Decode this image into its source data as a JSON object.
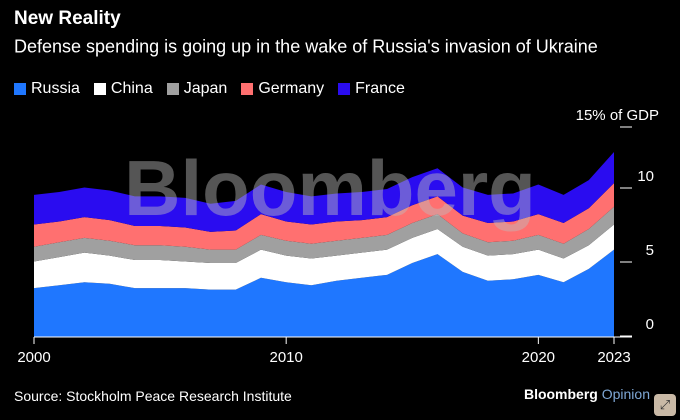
{
  "header": {
    "title": "New Reality",
    "subtitle": "Defense spending is going up in the wake of Russia's invasion of Ukraine"
  },
  "footer": {
    "source": "Source: Stockholm Peace Research Institute",
    "brand_main": "Bloomberg",
    "brand_sub": "Opinion"
  },
  "watermark": "Bloomberg",
  "colors": {
    "Russia": "#1f77ff",
    "China": "#ffffff",
    "Japan": "#a0a0a0",
    "Germany": "#ff7070",
    "France": "#2a0cf0"
  },
  "chart_data": {
    "type": "area",
    "stacked": true,
    "x": [
      2000,
      2001,
      2002,
      2003,
      2004,
      2005,
      2006,
      2007,
      2008,
      2009,
      2010,
      2011,
      2012,
      2013,
      2014,
      2015,
      2016,
      2017,
      2018,
      2019,
      2020,
      2021,
      2022,
      2023
    ],
    "series": [
      {
        "name": "Russia",
        "values": [
          3.3,
          3.5,
          3.7,
          3.6,
          3.3,
          3.3,
          3.3,
          3.2,
          3.2,
          4.0,
          3.7,
          3.5,
          3.8,
          4.0,
          4.2,
          5.0,
          5.6,
          4.4,
          3.8,
          3.9,
          4.2,
          3.7,
          4.6,
          5.9
        ]
      },
      {
        "name": "China",
        "values": [
          1.8,
          1.9,
          2.0,
          1.9,
          1.9,
          1.9,
          1.8,
          1.8,
          1.8,
          1.9,
          1.8,
          1.8,
          1.7,
          1.7,
          1.7,
          1.7,
          1.7,
          1.7,
          1.7,
          1.7,
          1.7,
          1.6,
          1.6,
          1.7
        ]
      },
      {
        "name": "Japan",
        "values": [
          1.0,
          1.0,
          1.0,
          1.0,
          1.0,
          1.0,
          1.0,
          0.9,
          0.9,
          1.0,
          1.0,
          1.0,
          1.0,
          1.0,
          1.0,
          1.0,
          1.0,
          0.9,
          0.9,
          0.9,
          1.0,
          1.0,
          1.1,
          1.2
        ]
      },
      {
        "name": "Germany",
        "values": [
          1.5,
          1.4,
          1.4,
          1.4,
          1.3,
          1.3,
          1.3,
          1.2,
          1.3,
          1.4,
          1.3,
          1.3,
          1.3,
          1.2,
          1.2,
          1.2,
          1.2,
          1.2,
          1.3,
          1.3,
          1.4,
          1.4,
          1.4,
          1.6
        ]
      },
      {
        "name": "France",
        "values": [
          2.0,
          2.0,
          2.0,
          2.0,
          2.0,
          2.0,
          2.0,
          1.9,
          2.0,
          2.0,
          2.0,
          1.9,
          1.9,
          1.9,
          1.9,
          1.9,
          1.9,
          1.9,
          1.9,
          1.9,
          2.0,
          1.9,
          1.9,
          2.1
        ]
      }
    ],
    "ylim": [
      0,
      15
    ],
    "y_ticks": [
      0,
      5,
      10
    ],
    "y_top_label": "15% of GDP",
    "x_ticks": [
      2000,
      2010,
      2020,
      2023
    ],
    "legend_position": "top-left",
    "grid": false
  }
}
